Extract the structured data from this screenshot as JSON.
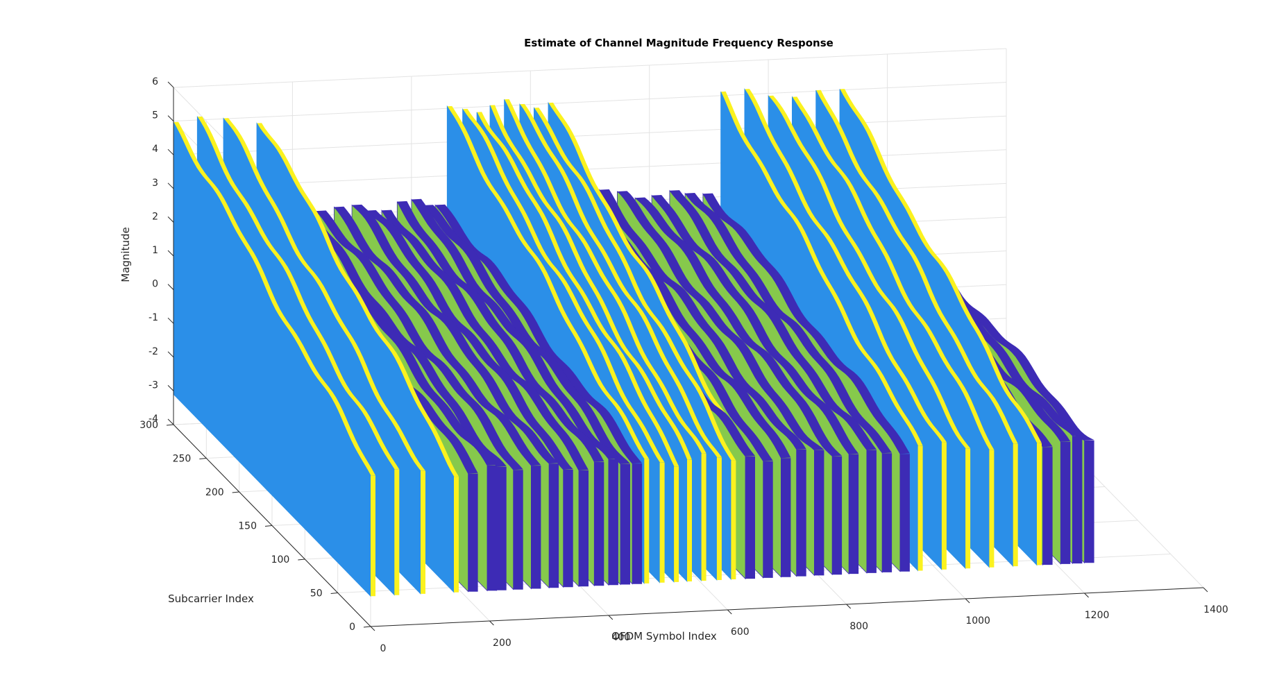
{
  "chart_data": {
    "type": "surface3d",
    "title": "Estimate of Channel Magnitude Frequency Response",
    "xlabel": "OFDM Symbol Index",
    "ylabel": "Subcarrier Index",
    "zlabel": "Magnitude",
    "xlim": [
      0,
      1400
    ],
    "ylim": [
      0,
      300
    ],
    "zlim": [
      -4,
      6
    ],
    "xticks": [
      "0",
      "200",
      "400",
      "600",
      "800",
      "1000",
      "1200",
      "1400"
    ],
    "yticks": [
      "0",
      "50",
      "100",
      "150",
      "200",
      "250",
      "300"
    ],
    "zticks": [
      "-4",
      "-3",
      "-2",
      "-1",
      "0",
      "1",
      "2",
      "3",
      "4",
      "5",
      "6"
    ],
    "grid": true,
    "colors": {
      "high_face": "#2b8fe8",
      "high_edge": "#fbf21f",
      "low_face": "#86c94c",
      "low_side": "#3d2bb5"
    },
    "series": [
      {
        "name": "",
        "x": [
          0,
          40,
          84,
          140
        ],
        "level": "high",
        "z_start": -1,
        "z_peak": 5.0,
        "z_end": 0.5
      },
      {
        "name": "",
        "x": [
          164,
          196,
          212,
          240,
          270,
          300,
          324,
          350,
          376,
          400,
          420,
          440
        ],
        "level": "low",
        "z_peak": 2.2,
        "z_end": 0.5
      },
      {
        "name": "",
        "x": [
          460,
          486,
          510,
          532,
          556,
          582,
          606,
          630
        ],
        "level": "high",
        "z_peak": 5.0,
        "z_end": 0.5
      },
      {
        "name": "",
        "x": [
          630,
          660,
          690,
          716,
          746,
          776,
          804,
          834,
          860,
          890
        ],
        "level": "low",
        "z_peak": 2.2,
        "z_end": 0.5
      },
      {
        "name": "",
        "x": [
          920,
          960,
          1000,
          1040,
          1080,
          1120
        ],
        "level": "high",
        "z_peak": 5.0,
        "z_end": 0.5
      },
      {
        "name": "",
        "x": [
          1130,
          1160,
          1180,
          1200
        ],
        "level": "low",
        "z_peak": 1.2,
        "z_end": 0.5
      }
    ]
  }
}
